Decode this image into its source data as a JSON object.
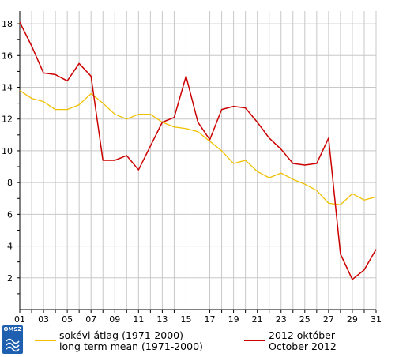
{
  "chart_data": {
    "type": "line",
    "x": [
      1,
      2,
      3,
      4,
      5,
      6,
      7,
      8,
      9,
      10,
      11,
      12,
      13,
      14,
      15,
      16,
      17,
      18,
      19,
      20,
      21,
      22,
      23,
      24,
      25,
      26,
      27,
      28,
      29,
      30,
      31
    ],
    "xticks": [
      "01",
      "03",
      "05",
      "07",
      "09",
      "11",
      "13",
      "15",
      "17",
      "19",
      "21",
      "23",
      "25",
      "27",
      "29",
      "31"
    ],
    "yticks": [
      "2",
      "4",
      "6",
      "8",
      "10",
      "12",
      "14",
      "16",
      "18"
    ],
    "ylim": [
      0,
      18.8
    ],
    "xlim": [
      1,
      31
    ],
    "grid": true,
    "series": [
      {
        "name": "sokévi átlag (1971-2000)",
        "name2": "long term mean (1971-2000)",
        "color": "#f0c000",
        "values": [
          13.8,
          13.3,
          13.1,
          12.6,
          12.6,
          12.9,
          13.6,
          13.0,
          12.3,
          12.0,
          12.3,
          12.3,
          11.8,
          11.5,
          11.4,
          11.2,
          10.6,
          10.0,
          9.2,
          9.4,
          8.7,
          8.3,
          8.6,
          8.2,
          7.9,
          7.5,
          6.7,
          6.6,
          7.3,
          6.9,
          7.1
        ]
      },
      {
        "name": "2012 október",
        "name2": "October 2012",
        "color": "#cc0000",
        "values": [
          18.1,
          16.6,
          14.9,
          14.8,
          14.4,
          15.5,
          14.7,
          9.4,
          9.4,
          9.7,
          8.8,
          10.3,
          11.8,
          12.1,
          14.7,
          11.8,
          10.7,
          12.6,
          12.8,
          12.7,
          11.8,
          10.8,
          10.1,
          9.2,
          9.1,
          9.2,
          10.8,
          3.5,
          1.9,
          2.5,
          3.8
        ]
      }
    ],
    "legend_position": "bottom"
  },
  "logo": {
    "text": "OMSZ"
  }
}
